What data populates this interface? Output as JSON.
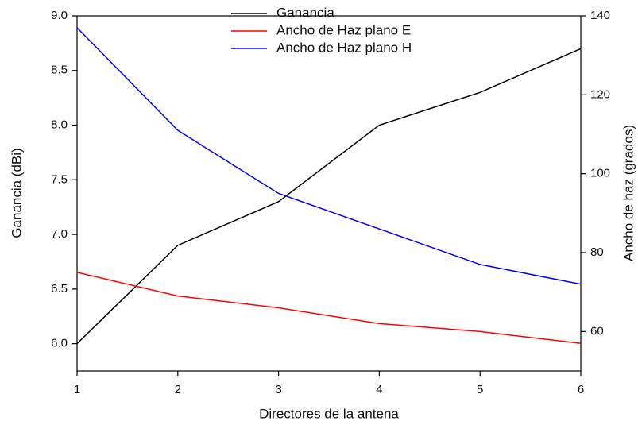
{
  "chart_data": {
    "type": "line",
    "x_label": "Directores de la antena",
    "y_label": "Ganancia (dBi)",
    "y2_label": "Ancho de haz (grados)",
    "x": [
      1,
      2,
      3,
      4,
      5,
      6
    ],
    "xlim": [
      1,
      6
    ],
    "xticks": [
      1,
      2,
      3,
      4,
      5,
      6
    ],
    "ylim": [
      5.75,
      9.0
    ],
    "yticks": [
      {
        "value": 6.0,
        "label": "6.0"
      },
      6.5,
      {
        "value": 7.0,
        "label": "7.0"
      },
      7.5,
      {
        "value": 8.0,
        "label": "8.0"
      },
      8.5,
      {
        "value": 9.0,
        "label": "9.0"
      }
    ],
    "y2lim": [
      50,
      140
    ],
    "y2ticks": [
      60,
      80,
      100,
      120,
      140
    ],
    "legend": "top",
    "series": [
      {
        "name": "Ganancia",
        "color": "#000000",
        "values": [
          6.0,
          6.9,
          7.3,
          8.0,
          8.3,
          8.7
        ]
      },
      {
        "name": "Ancho de Haz plano E",
        "color": "#ff0000",
        "axis": "y2",
        "values": [
          75,
          69,
          66,
          62,
          60,
          57
        ]
      },
      {
        "name": "Ancho de Haz plano H",
        "color": "#0000ff",
        "axis": "y2",
        "values": [
          137,
          111,
          95,
          86,
          77,
          72
        ]
      }
    ]
  }
}
